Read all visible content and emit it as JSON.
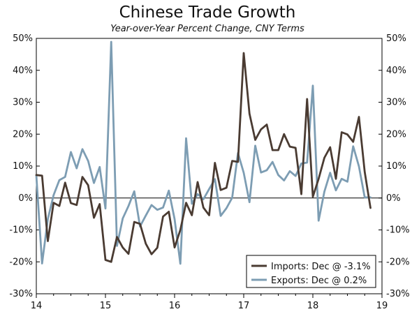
{
  "chart_data": {
    "type": "line",
    "title": "Chinese Trade Growth",
    "subtitle": "Year-over-Year Percent Change, CNY Terms",
    "ylim": [
      -30,
      50
    ],
    "y_ticks": [
      "-30%",
      "-20%",
      "-10%",
      "0%",
      "10%",
      "20%",
      "30%",
      "40%",
      "50%"
    ],
    "y_tick_values": [
      -30,
      -20,
      -10,
      0,
      10,
      20,
      30,
      40,
      50
    ],
    "xlim": [
      14,
      19
    ],
    "x_tick_labels": [
      "14",
      "15",
      "16",
      "17",
      "18",
      "19"
    ],
    "x_tick_values": [
      14,
      15,
      16,
      17,
      18,
      19
    ],
    "start": 14.0,
    "step": 0.0833333,
    "series": [
      {
        "name": "Imports",
        "legend": "Imports: Dec @ -3.1%",
        "color": "#4a3b32",
        "values": [
          7.2,
          7.0,
          -13.5,
          -1.5,
          -2.5,
          4.8,
          -1.6,
          -2.2,
          6.6,
          4.0,
          -6.2,
          -1.9,
          -19.4,
          -20.0,
          -12.2,
          -15.5,
          -17.5,
          -7.5,
          -8.1,
          -14.3,
          -17.6,
          -15.6,
          -5.8,
          -4.3,
          -15.5,
          -10.0,
          -1.5,
          -5.4,
          5.0,
          -3.0,
          -5.4,
          11.0,
          2.5,
          3.2,
          11.6,
          11.3,
          45.4,
          26.4,
          18.2,
          21.5,
          23.0,
          15.0,
          15.0,
          20.0,
          16.1,
          15.7,
          1.2,
          31.0,
          0.4,
          6.0,
          12.6,
          15.9,
          6.0,
          20.6,
          19.9,
          17.6,
          25.4,
          8.2,
          -3.1
        ]
      },
      {
        "name": "Exports",
        "legend": "Exports: Dec @ 0.2%",
        "color": "#7d9db3",
        "values": [
          7.1,
          -20.5,
          -6.6,
          0.9,
          5.6,
          6.6,
          14.4,
          9.3,
          15.3,
          11.6,
          4.7,
          9.7,
          -3.3,
          48.9,
          -15.0,
          -6.4,
          -2.5,
          2.1,
          -8.9,
          -5.5,
          -2.2,
          -3.7,
          -3.0,
          2.3,
          -6.6,
          -20.6,
          18.7,
          -1.8,
          1.2,
          -0.4,
          2.8,
          5.9,
          -5.6,
          -3.2,
          0.1,
          14.1,
          7.9,
          -1.3,
          16.4,
          8.0,
          8.7,
          11.3,
          7.2,
          5.5,
          8.4,
          6.9,
          10.8,
          11.1,
          35.2,
          -7.1,
          2.0,
          7.9,
          2.4,
          6.0,
          5.1,
          16.2,
          9.9,
          0.2,
          0.2
        ]
      }
    ]
  }
}
